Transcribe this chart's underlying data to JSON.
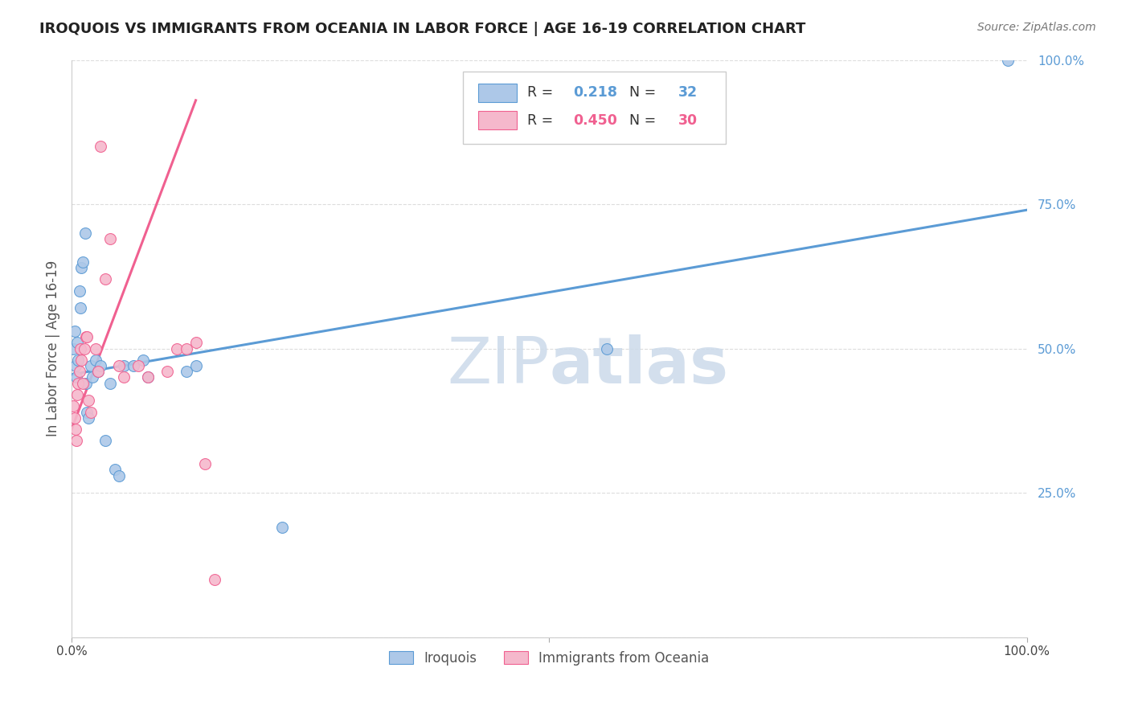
{
  "title": "IROQUOIS VS IMMIGRANTS FROM OCEANIA IN LABOR FORCE | AGE 16-19 CORRELATION CHART",
  "source": "Source: ZipAtlas.com",
  "ylabel": "In Labor Force | Age 16-19",
  "xlim": [
    0.0,
    1.0
  ],
  "ylim": [
    0.0,
    1.0
  ],
  "ytick_positions": [
    0.0,
    0.25,
    0.5,
    0.75,
    1.0
  ],
  "ytick_labels_right": [
    "",
    "25.0%",
    "50.0%",
    "75.0%",
    "100.0%"
  ],
  "background_color": "#ffffff",
  "grid_color": "#dddddd",
  "iroquois_color": "#adc8e8",
  "immigrants_color": "#f5b8cc",
  "iroquois_line_color": "#5b9bd5",
  "immigrants_line_color": "#f06090",
  "watermark_color": "#ccdaea",
  "legend_R_iroquois": "0.218",
  "legend_N_iroquois": "32",
  "legend_R_immigrants": "0.450",
  "legend_N_immigrants": "30",
  "iroquois_scatter_x": [
    0.002,
    0.003,
    0.004,
    0.005,
    0.006,
    0.007,
    0.008,
    0.009,
    0.01,
    0.012,
    0.014,
    0.015,
    0.016,
    0.018,
    0.02,
    0.022,
    0.025,
    0.028,
    0.03,
    0.035,
    0.04,
    0.045,
    0.05,
    0.055,
    0.065,
    0.075,
    0.08,
    0.12,
    0.13,
    0.22,
    0.56,
    0.98
  ],
  "iroquois_scatter_y": [
    0.5,
    0.53,
    0.47,
    0.45,
    0.51,
    0.48,
    0.6,
    0.57,
    0.64,
    0.65,
    0.7,
    0.44,
    0.39,
    0.38,
    0.47,
    0.45,
    0.48,
    0.46,
    0.47,
    0.34,
    0.44,
    0.29,
    0.28,
    0.47,
    0.47,
    0.48,
    0.45,
    0.46,
    0.47,
    0.19,
    0.5,
    1.0
  ],
  "immigrants_scatter_x": [
    0.002,
    0.003,
    0.004,
    0.005,
    0.006,
    0.007,
    0.008,
    0.009,
    0.01,
    0.012,
    0.013,
    0.015,
    0.016,
    0.018,
    0.02,
    0.025,
    0.028,
    0.03,
    0.035,
    0.04,
    0.05,
    0.055,
    0.07,
    0.08,
    0.1,
    0.11,
    0.12,
    0.13,
    0.14,
    0.15
  ],
  "immigrants_scatter_y": [
    0.4,
    0.38,
    0.36,
    0.34,
    0.42,
    0.44,
    0.46,
    0.5,
    0.48,
    0.44,
    0.5,
    0.52,
    0.52,
    0.41,
    0.39,
    0.5,
    0.46,
    0.85,
    0.62,
    0.69,
    0.47,
    0.45,
    0.47,
    0.45,
    0.46,
    0.5,
    0.5,
    0.51,
    0.3,
    0.1
  ],
  "iroquois_trend_x": [
    0.0,
    1.0
  ],
  "iroquois_trend_y": [
    0.455,
    0.74
  ],
  "immigrants_trend_x": [
    0.0,
    0.13
  ],
  "immigrants_trend_y": [
    0.36,
    0.93
  ]
}
